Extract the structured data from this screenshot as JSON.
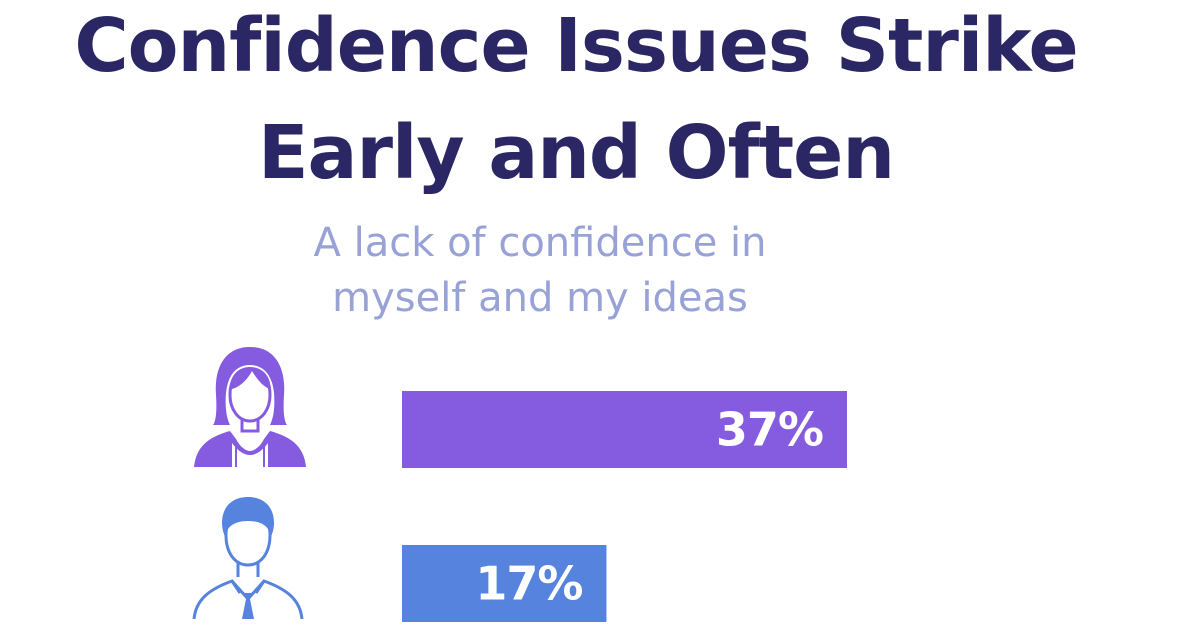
{
  "title_line1": "Confidence Issues Strike",
  "title_line2": "Early and Often",
  "subtitle_line1": "A lack of confidence in",
  "subtitle_line2": "myself and my ideas",
  "chart_data": {
    "type": "bar",
    "orientation": "horizontal",
    "title": "Confidence Issues Strike Early and Often",
    "subtitle": "A lack of confidence in myself and my ideas",
    "categories": [
      "Women",
      "Men"
    ],
    "values": [
      37,
      17
    ],
    "labels": [
      "37%",
      "17%"
    ],
    "colors": [
      "#855ce0",
      "#5683de"
    ],
    "icons": [
      "female-person-icon",
      "male-person-icon"
    ],
    "xlim": [
      0,
      100
    ],
    "unit": "%"
  }
}
